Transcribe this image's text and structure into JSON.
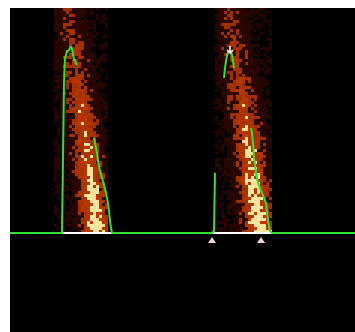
{
  "chart_data": {
    "type": "line",
    "title": "",
    "xlabel": "",
    "ylabel": "",
    "xlim": [
      0,
      345
    ],
    "ylim": [
      0,
      225
    ],
    "grid": false,
    "colors": {
      "trace": "#33dd33",
      "baseline": "#ffffff",
      "marker": "#f2d4d4",
      "heat_dark": "#3a0800",
      "heat_mid": "#c83c00",
      "heat_bright": "#ffe6a0",
      "background": "#000000"
    },
    "bursts": [
      {
        "name": "burst-1",
        "x_start": 44,
        "x_end": 96
      },
      {
        "name": "burst-2",
        "x_start": 205,
        "x_end": 260
      }
    ],
    "series": [
      {
        "name": "",
        "segments": [
          [
            [
              0,
              0
            ],
            [
              44,
              0
            ],
            [
              52,
              0
            ],
            [
              54,
              150
            ],
            [
              55,
              175
            ],
            [
              56,
              178
            ],
            [
              57,
              182
            ],
            [
              58,
              182
            ],
            [
              59,
              183
            ],
            [
              60,
              185
            ],
            [
              61,
              186
            ],
            [
              62,
              184
            ],
            [
              63,
              178
            ],
            [
              64,
              174
            ],
            [
              65,
              172
            ],
            [
              66,
              170
            ],
            [
              67,
              168
            ]
          ],
          [
            [
              84,
              95
            ],
            [
              85,
              90
            ],
            [
              86,
              85
            ],
            [
              87,
              80
            ],
            [
              88,
              72
            ],
            [
              90,
              62
            ],
            [
              92,
              55
            ],
            [
              94,
              48
            ],
            [
              96,
              40
            ],
            [
              98,
              30
            ],
            [
              99,
              22
            ],
            [
              100,
              12
            ],
            [
              101,
              5
            ],
            [
              102,
              0
            ],
            [
              202,
              0
            ],
            [
              204,
              2
            ],
            [
              205,
              60
            ]
          ],
          [
            [
              214,
              155
            ],
            [
              215,
              165
            ],
            [
              216,
              172
            ],
            [
              217,
              178
            ],
            [
              218,
              180
            ],
            [
              219,
              181
            ],
            [
              220,
              181
            ],
            [
              221,
              180
            ],
            [
              222,
              178
            ],
            [
              223,
              172
            ],
            [
              224,
              165
            ]
          ],
          [
            [
              241,
              105
            ],
            [
              242,
              100
            ],
            [
              243,
              90
            ],
            [
              244,
              75
            ],
            [
              246,
              60
            ],
            [
              248,
              50
            ],
            [
              250,
              45
            ],
            [
              252,
              40
            ],
            [
              254,
              35
            ],
            [
              256,
              30
            ],
            [
              257,
              22
            ],
            [
              258,
              12
            ],
            [
              260,
              2
            ],
            [
              262,
              0
            ],
            [
              345,
              0
            ]
          ]
        ]
      }
    ],
    "markers": [
      {
        "type": "arrow-down",
        "x": 220,
        "y": 187
      },
      {
        "type": "triangle-up",
        "x": 202,
        "y": -4
      },
      {
        "type": "triangle-up",
        "x": 251,
        "y": -4
      }
    ]
  }
}
